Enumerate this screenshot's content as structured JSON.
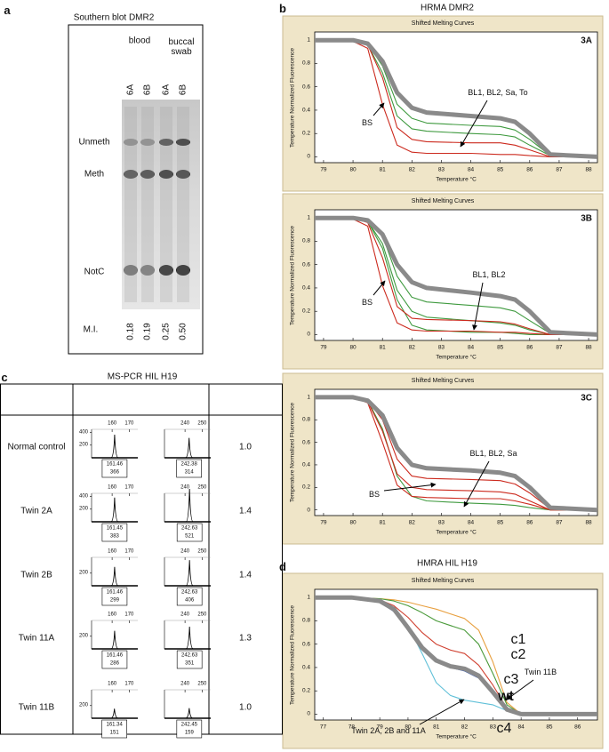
{
  "panel_a": {
    "letter": "a",
    "title": "Southern blot DMR2",
    "groups": [
      "blood",
      "buccal swab"
    ],
    "lanes": [
      "6A",
      "6B",
      "6A",
      "6B"
    ],
    "bands": [
      "Unmeth",
      "Meth",
      "NotC"
    ],
    "mi_label": "M.I.",
    "mi_values": [
      "0.18",
      "0.19",
      "0.25",
      "0.50"
    ]
  },
  "panel_b": {
    "letter": "b",
    "title": "HRMA DMR2",
    "plots": [
      {
        "title": "Shifted Melting Curves",
        "tag": "3A",
        "xlabel": "Temperature °C",
        "ylabel": "Temperature Normalized Fluorescence",
        "xlim": [
          78.7,
          88.3
        ],
        "ylim": [
          -0.05,
          1.07
        ],
        "xticks": [
          79,
          80,
          81,
          82,
          83,
          84,
          85,
          86,
          87,
          88
        ],
        "yticks": [
          0,
          0.2,
          0.4,
          0.6,
          0.8,
          1
        ],
        "x": [
          78.7,
          80,
          80.5,
          81,
          81.5,
          82,
          82.5,
          84,
          85,
          85.5,
          86,
          86.7,
          88.3
        ],
        "series": [
          {
            "color": "#3f9a3f",
            "values": [
              1,
              1,
              0.97,
              0.78,
              0.45,
              0.33,
              0.29,
              0.27,
              0.26,
              0.23,
              0.15,
              0.01,
              0
            ]
          },
          {
            "color": "#3f9a3f",
            "values": [
              1,
              1,
              0.96,
              0.72,
              0.35,
              0.24,
              0.22,
              0.2,
              0.19,
              0.17,
              0.1,
              0.01,
              0
            ]
          },
          {
            "color": "#cc2a1e",
            "values": [
              1,
              1,
              0.96,
              0.68,
              0.25,
              0.15,
              0.13,
              0.12,
              0.12,
              0.1,
              0.06,
              0,
              0
            ]
          },
          {
            "color": "#cc2a1e",
            "values": [
              1,
              0.99,
              0.93,
              0.45,
              0.1,
              0.04,
              0.03,
              0.03,
              0.02,
              0.02,
              0.01,
              0,
              0
            ]
          },
          {
            "color": "#8a8a8a",
            "width": 5,
            "values": [
              1,
              1,
              0.97,
              0.82,
              0.55,
              0.42,
              0.38,
              0.35,
              0.33,
              0.3,
              0.2,
              0.02,
              0
            ]
          }
        ],
        "annotations": [
          "BS",
          "BL1, BL2, Sa, To"
        ]
      },
      {
        "title": "Shifted Melting Curves",
        "tag": "3B",
        "xlabel": "Temperature °C",
        "ylabel": "Temperature Normalized Fluorescence",
        "xlim": [
          78.7,
          88.3
        ],
        "ylim": [
          -0.05,
          1.07
        ],
        "xticks": [
          79,
          80,
          81,
          82,
          83,
          84,
          85,
          86,
          87,
          88
        ],
        "yticks": [
          0,
          0.2,
          0.4,
          0.6,
          0.8,
          1
        ],
        "x": [
          78.7,
          80,
          80.5,
          81,
          81.5,
          82,
          82.5,
          84,
          85,
          85.5,
          86,
          86.7,
          88.3
        ],
        "series": [
          {
            "color": "#3f9a3f",
            "values": [
              1,
              1,
              0.98,
              0.85,
              0.5,
              0.32,
              0.28,
              0.25,
              0.23,
              0.2,
              0.12,
              0.01,
              0
            ]
          },
          {
            "color": "#3f9a3f",
            "values": [
              1,
              1,
              0.97,
              0.78,
              0.38,
              0.2,
              0.15,
              0.12,
              0.1,
              0.08,
              0.04,
              0,
              0
            ]
          },
          {
            "color": "#3f9a3f",
            "values": [
              1,
              1,
              0.97,
              0.74,
              0.3,
              0.08,
              0.04,
              0.02,
              0.02,
              0.01,
              0,
              0,
              0
            ]
          },
          {
            "color": "#cc2a1e",
            "values": [
              1,
              1,
              0.96,
              0.66,
              0.24,
              0.14,
              0.13,
              0.12,
              0.11,
              0.09,
              0.05,
              0,
              0
            ]
          },
          {
            "color": "#cc2a1e",
            "values": [
              1,
              0.99,
              0.93,
              0.42,
              0.1,
              0.04,
              0.03,
              0.03,
              0.02,
              0.02,
              0.01,
              0,
              0
            ]
          },
          {
            "color": "#8a8a8a",
            "width": 5,
            "values": [
              1,
              1,
              0.98,
              0.86,
              0.6,
              0.45,
              0.4,
              0.36,
              0.33,
              0.3,
              0.2,
              0.02,
              0
            ]
          }
        ],
        "annotations": [
          "BS",
          "BL1, BL2"
        ]
      },
      {
        "title": "Shifted Melting Curves",
        "tag": "3C",
        "xlabel": "Temperature °C",
        "ylabel": "Temperature Normalized Fluorescence",
        "xlim": [
          78.7,
          88.3
        ],
        "ylim": [
          -0.05,
          1.07
        ],
        "xticks": [
          79,
          80,
          81,
          82,
          83,
          84,
          85,
          86,
          87,
          88
        ],
        "yticks": [
          0,
          0.2,
          0.4,
          0.6,
          0.8,
          1
        ],
        "x": [
          78.7,
          80,
          80.5,
          81,
          81.5,
          82,
          82.5,
          84,
          85,
          85.5,
          86,
          86.7,
          88.3
        ],
        "series": [
          {
            "color": "#3f9a3f",
            "values": [
              1,
              1,
              0.97,
              0.72,
              0.3,
              0.12,
              0.08,
              0.06,
              0.05,
              0.04,
              0.02,
              0,
              0
            ]
          },
          {
            "color": "#cc2a1e",
            "values": [
              1,
              1,
              0.97,
              0.8,
              0.45,
              0.3,
              0.28,
              0.27,
              0.26,
              0.23,
              0.15,
              0.01,
              0
            ]
          },
          {
            "color": "#cc2a1e",
            "values": [
              1,
              1,
              0.96,
              0.7,
              0.32,
              0.2,
              0.18,
              0.17,
              0.16,
              0.14,
              0.08,
              0,
              0
            ]
          },
          {
            "color": "#cc2a1e",
            "values": [
              1,
              1,
              0.95,
              0.6,
              0.22,
              0.12,
              0.11,
              0.1,
              0.1,
              0.08,
              0.05,
              0,
              0
            ]
          },
          {
            "color": "#8a8a8a",
            "width": 5,
            "values": [
              1,
              1,
              0.97,
              0.84,
              0.55,
              0.4,
              0.37,
              0.35,
              0.33,
              0.3,
              0.2,
              0.02,
              0
            ]
          }
        ],
        "annotations": [
          "BS",
          "BL1, BL2, Sa"
        ]
      }
    ]
  },
  "panel_c": {
    "letter": "c",
    "title": "MS-PCR HIL H19",
    "xlims": [
      [
        148,
        175
      ],
      [
        228,
        255
      ]
    ],
    "xticks": [
      [
        160,
        170
      ],
      [
        240,
        250
      ]
    ],
    "ylim": [
      0,
      450
    ],
    "rows": [
      {
        "label": "Normal control",
        "yticks": [
          400,
          200
        ],
        "ratio": "1.0",
        "peaks": [
          {
            "size": 161.46,
            "height": 366
          },
          {
            "size": 242.38,
            "height": 314
          }
        ]
      },
      {
        "label": "Twin 2A",
        "yticks": [
          400,
          200
        ],
        "ratio": "1.4",
        "peaks": [
          {
            "size": 161.45,
            "height": 383
          },
          {
            "size": 242.63,
            "height": 521
          }
        ]
      },
      {
        "label": "Twin 2B",
        "yticks": [
          200
        ],
        "ratio": "1.4",
        "peaks": [
          {
            "size": 161.46,
            "height": 299
          },
          {
            "size": 242.63,
            "height": 406
          }
        ]
      },
      {
        "label": "Twin 11A",
        "yticks": [
          200
        ],
        "ratio": "1.3",
        "peaks": [
          {
            "size": 161.46,
            "height": 286
          },
          {
            "size": 242.63,
            "height": 351
          }
        ]
      },
      {
        "label": "Twin 11B",
        "yticks": [
          200
        ],
        "ratio": "1.0",
        "peaks": [
          {
            "size": 161.34,
            "height": 151
          },
          {
            "size": 242.45,
            "height": 159
          }
        ]
      }
    ]
  },
  "panel_d": {
    "letter": "d",
    "title": "HMRA HIL H19",
    "plot": {
      "title": "Shifted Melting Curves",
      "xlabel": "Temperature °C",
      "ylabel": "Temperature Normalized Fluorescence",
      "xlim": [
        76.7,
        86.7
      ],
      "ylim": [
        -0.05,
        1.07
      ],
      "xticks": [
        77,
        78,
        79,
        80,
        81,
        82,
        83,
        84,
        85,
        86
      ],
      "yticks": [
        0,
        0.2,
        0.4,
        0.6,
        0.8,
        1
      ],
      "x": [
        76.7,
        78,
        79,
        79.5,
        80,
        80.5,
        81,
        81.5,
        82,
        82.5,
        83,
        83.5,
        84,
        86.7
      ],
      "series": [
        {
          "color": "#e8a040",
          "values": [
            1,
            1,
            0.99,
            0.98,
            0.96,
            0.93,
            0.9,
            0.86,
            0.82,
            0.72,
            0.45,
            0.1,
            0,
            0
          ]
        },
        {
          "color": "#4a9a3a",
          "values": [
            1,
            1,
            0.99,
            0.97,
            0.93,
            0.87,
            0.8,
            0.76,
            0.72,
            0.6,
            0.35,
            0.08,
            0,
            0
          ]
        },
        {
          "color": "#d04030",
          "values": [
            1,
            1,
            0.98,
            0.93,
            0.83,
            0.7,
            0.6,
            0.55,
            0.52,
            0.42,
            0.25,
            0.05,
            0,
            0
          ]
        },
        {
          "color": "#4060b0",
          "values": [
            1,
            1,
            0.97,
            0.9,
            0.76,
            0.58,
            0.47,
            0.42,
            0.4,
            0.34,
            0.2,
            0.04,
            0,
            0
          ]
        },
        {
          "color": "#4060b0",
          "values": [
            1,
            1,
            0.96,
            0.88,
            0.72,
            0.55,
            0.45,
            0.4,
            0.37,
            0.31,
            0.18,
            0.03,
            0,
            0
          ]
        },
        {
          "color": "#60c0d8",
          "values": [
            1,
            1,
            0.97,
            0.9,
            0.76,
            0.52,
            0.27,
            0.16,
            0.12,
            0.1,
            0.08,
            0.03,
            0,
            0
          ]
        },
        {
          "color": "#8a8a8a",
          "width": 5,
          "values": [
            1,
            1,
            0.97,
            0.9,
            0.74,
            0.57,
            0.46,
            0.41,
            0.39,
            0.33,
            0.19,
            0.04,
            0,
            0
          ]
        }
      ],
      "annotations": [
        "c1",
        "c2",
        "c3",
        "wt",
        "c4",
        "Twin 11B",
        "Twin 2A, 2B and 11A"
      ]
    }
  }
}
